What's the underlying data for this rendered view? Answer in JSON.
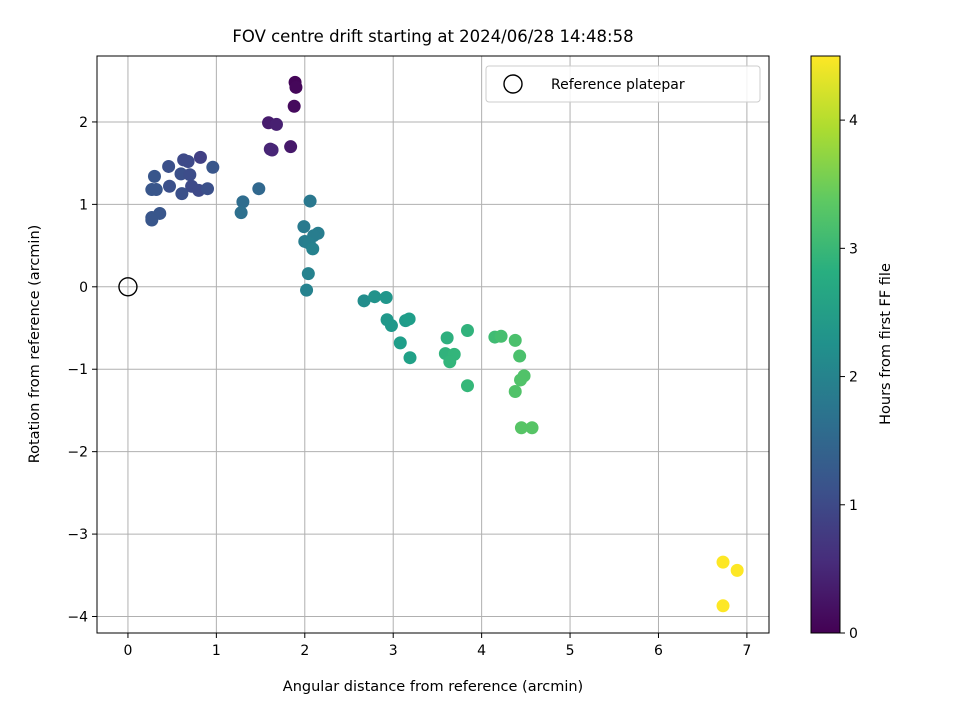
{
  "chart_data": {
    "type": "scatter",
    "title": "FOV centre drift starting at 2024/06/28 14:48:58",
    "xlabel": "Angular distance from reference (arcmin)",
    "ylabel": "Rotation from reference (arcmin)",
    "xlim": [
      -0.35,
      7.25
    ],
    "ylim": [
      -4.2,
      2.8
    ],
    "x_ticks": [
      0,
      1,
      2,
      3,
      4,
      5,
      6,
      7
    ],
    "x_tick_labels": [
      "0",
      "1",
      "2",
      "3",
      "4",
      "5",
      "6",
      "7"
    ],
    "y_ticks": [
      -4,
      -3,
      -2,
      -1,
      0,
      1,
      2
    ],
    "y_tick_labels": [
      "−4",
      "−3",
      "−2",
      "−1",
      "0",
      "1",
      "2"
    ],
    "grid": true,
    "legend": {
      "position": "top-right",
      "entries": [
        {
          "label": "Reference platepar",
          "marker": "open-circle"
        }
      ]
    },
    "reference_point": {
      "x": 0,
      "y": 0
    },
    "colorbar": {
      "label": "Hours from first FF file",
      "colormap": "viridis",
      "range": [
        0,
        4.5
      ],
      "ticks": [
        0,
        1,
        2,
        3,
        4
      ],
      "tick_labels": [
        "0",
        "1",
        "2",
        "3",
        "4"
      ]
    },
    "points": [
      {
        "x": 1.89,
        "y": 2.48,
        "c": 0.05
      },
      {
        "x": 1.9,
        "y": 2.42,
        "c": 0.08
      },
      {
        "x": 1.88,
        "y": 2.19,
        "c": 0.12
      },
      {
        "x": 1.59,
        "y": 1.99,
        "c": 0.35
      },
      {
        "x": 1.68,
        "y": 1.97,
        "c": 0.4
      },
      {
        "x": 1.61,
        "y": 1.67,
        "c": 0.45
      },
      {
        "x": 1.63,
        "y": 1.66,
        "c": 0.48
      },
      {
        "x": 1.84,
        "y": 1.7,
        "c": 0.3
      },
      {
        "x": 0.63,
        "y": 1.54,
        "c": 1.0
      },
      {
        "x": 0.68,
        "y": 1.52,
        "c": 1.0
      },
      {
        "x": 0.82,
        "y": 1.57,
        "c": 0.85
      },
      {
        "x": 0.46,
        "y": 1.46,
        "c": 1.1
      },
      {
        "x": 0.96,
        "y": 1.45,
        "c": 1.2
      },
      {
        "x": 0.6,
        "y": 1.37,
        "c": 1.1
      },
      {
        "x": 0.7,
        "y": 1.36,
        "c": 1.05
      },
      {
        "x": 0.3,
        "y": 1.34,
        "c": 1.2
      },
      {
        "x": 0.47,
        "y": 1.22,
        "c": 1.1
      },
      {
        "x": 0.72,
        "y": 1.22,
        "c": 1.0
      },
      {
        "x": 0.8,
        "y": 1.17,
        "c": 1.0
      },
      {
        "x": 0.9,
        "y": 1.19,
        "c": 1.1
      },
      {
        "x": 0.27,
        "y": 1.18,
        "c": 1.2
      },
      {
        "x": 0.32,
        "y": 1.18,
        "c": 1.2
      },
      {
        "x": 0.61,
        "y": 1.13,
        "c": 1.1
      },
      {
        "x": 0.36,
        "y": 0.89,
        "c": 1.2
      },
      {
        "x": 0.27,
        "y": 0.84,
        "c": 1.2
      },
      {
        "x": 0.27,
        "y": 0.81,
        "c": 1.2
      },
      {
        "x": 1.48,
        "y": 1.19,
        "c": 1.5
      },
      {
        "x": 1.3,
        "y": 1.03,
        "c": 1.6
      },
      {
        "x": 1.28,
        "y": 0.9,
        "c": 1.65
      },
      {
        "x": 2.06,
        "y": 1.04,
        "c": 1.8
      },
      {
        "x": 1.99,
        "y": 0.73,
        "c": 1.85
      },
      {
        "x": 2.15,
        "y": 0.65,
        "c": 1.9
      },
      {
        "x": 2.1,
        "y": 0.62,
        "c": 1.9
      },
      {
        "x": 2.0,
        "y": 0.55,
        "c": 1.9
      },
      {
        "x": 2.05,
        "y": 0.53,
        "c": 1.95
      },
      {
        "x": 2.09,
        "y": 0.46,
        "c": 2.0
      },
      {
        "x": 2.04,
        "y": 0.16,
        "c": 2.0
      },
      {
        "x": 2.02,
        "y": -0.04,
        "c": 2.0
      },
      {
        "x": 2.67,
        "y": -0.17,
        "c": 2.2
      },
      {
        "x": 2.79,
        "y": -0.12,
        "c": 2.3
      },
      {
        "x": 2.92,
        "y": -0.13,
        "c": 2.35
      },
      {
        "x": 2.93,
        "y": -0.4,
        "c": 2.4
      },
      {
        "x": 2.98,
        "y": -0.47,
        "c": 2.4
      },
      {
        "x": 3.14,
        "y": -0.41,
        "c": 2.45
      },
      {
        "x": 3.18,
        "y": -0.39,
        "c": 2.5
      },
      {
        "x": 3.08,
        "y": -0.68,
        "c": 2.5
      },
      {
        "x": 3.19,
        "y": -0.86,
        "c": 2.55
      },
      {
        "x": 3.61,
        "y": -0.62,
        "c": 2.85
      },
      {
        "x": 3.84,
        "y": -0.53,
        "c": 2.9
      },
      {
        "x": 3.59,
        "y": -0.81,
        "c": 2.9
      },
      {
        "x": 3.69,
        "y": -0.82,
        "c": 2.95
      },
      {
        "x": 3.64,
        "y": -0.91,
        "c": 2.95
      },
      {
        "x": 3.84,
        "y": -1.2,
        "c": 3.0
      },
      {
        "x": 4.15,
        "y": -0.61,
        "c": 3.1
      },
      {
        "x": 4.22,
        "y": -0.6,
        "c": 3.15
      },
      {
        "x": 4.38,
        "y": -0.65,
        "c": 3.2
      },
      {
        "x": 4.43,
        "y": -0.84,
        "c": 3.2
      },
      {
        "x": 4.48,
        "y": -1.08,
        "c": 3.25
      },
      {
        "x": 4.44,
        "y": -1.13,
        "c": 3.25
      },
      {
        "x": 4.38,
        "y": -1.27,
        "c": 3.25
      },
      {
        "x": 4.45,
        "y": -1.71,
        "c": 3.3
      },
      {
        "x": 4.57,
        "y": -1.71,
        "c": 3.3
      },
      {
        "x": 6.73,
        "y": -3.34,
        "c": 4.5
      },
      {
        "x": 6.89,
        "y": -3.44,
        "c": 4.5
      },
      {
        "x": 6.73,
        "y": -3.87,
        "c": 4.5
      }
    ]
  }
}
